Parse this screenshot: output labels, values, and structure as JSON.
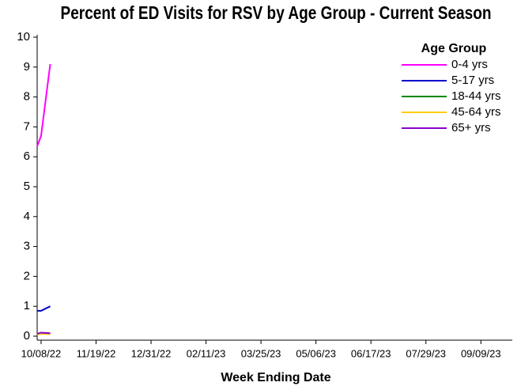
{
  "chart_data": {
    "type": "line",
    "title": "Percent of ED Visits for RSV by Age Group - Current Season",
    "x_label": "Week Ending Date",
    "legend_title": "Age Group",
    "legend": "top-right",
    "x": [
      "10/05/22",
      "10/08/22",
      "10/15/22"
    ],
    "series": [
      {
        "name": "0-4 yrs",
        "color": "#ff00ff",
        "values": [
          6.35,
          6.7,
          9.1
        ]
      },
      {
        "name": "5-17 yrs",
        "color": "#0000cc",
        "values": [
          0.85,
          0.85,
          1.0
        ]
      },
      {
        "name": "18-44 yrs",
        "color": "#008800",
        "values": [
          0.05,
          0.1,
          0.08
        ]
      },
      {
        "name": "45-64 yrs",
        "color": "#ffcc00",
        "values": [
          0.05,
          0.08,
          0.07
        ]
      },
      {
        "name": "65+ yrs",
        "color": "#8800cc",
        "values": [
          0.08,
          0.12,
          0.1
        ]
      }
    ],
    "xlim": [
      "10/05/22",
      "10/03/23"
    ],
    "xticks": [
      "10/08/22",
      "11/19/22",
      "12/31/22",
      "02/11/23",
      "03/25/23",
      "05/06/23",
      "06/17/23",
      "07/29/23",
      "09/09/23"
    ],
    "ylim": [
      0,
      10
    ],
    "yticks": [
      0,
      1,
      2,
      3,
      4,
      5,
      6,
      7,
      8,
      9,
      10
    ]
  }
}
